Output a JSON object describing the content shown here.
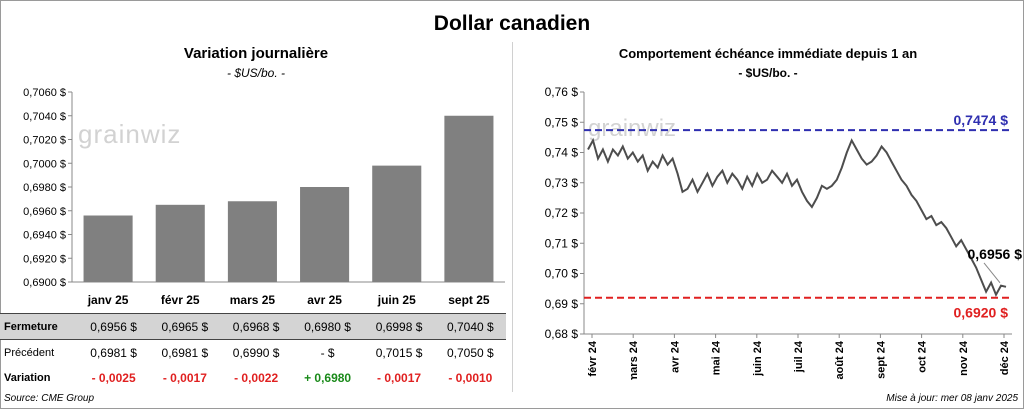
{
  "title": "Dollar canadien",
  "left": {
    "title": "Variation journalière",
    "unit": "- $US/bo. -",
    "chart_data": {
      "type": "bar",
      "categories": [
        "janv 25",
        "févr 25",
        "mars 25",
        "avr 25",
        "juin 25",
        "sept 25"
      ],
      "values": [
        0.6956,
        0.6965,
        0.6968,
        0.698,
        0.6998,
        0.704
      ],
      "ylim": [
        0.69,
        0.706
      ],
      "yticks": [
        "0,6900 $",
        "0,6920 $",
        "0,6940 $",
        "0,6960 $",
        "0,6980 $",
        "0,7000 $",
        "0,7020 $",
        "0,7040 $",
        "0,7060 $"
      ],
      "bar_color": "#808080"
    }
  },
  "table": {
    "rows": [
      {
        "label": "Fermeture",
        "values": [
          "0,6956 $",
          "0,6965 $",
          "0,6968 $",
          "0,6980 $",
          "0,6998 $",
          "0,7040 $"
        ]
      },
      {
        "label": "Précédent",
        "values": [
          "0,6981 $",
          "0,6981 $",
          "0,6990 $",
          "- $",
          "0,7015 $",
          "0,7050 $"
        ]
      },
      {
        "label": "Variation",
        "values": [
          "- 0,0025",
          "- 0,0017",
          "- 0,0022",
          "+ 0,6980",
          "- 0,0017",
          "- 0,0010"
        ],
        "signs": [
          "neg",
          "neg",
          "neg",
          "pos",
          "neg",
          "neg"
        ]
      }
    ]
  },
  "right": {
    "title": "Comportement échéance immédiate depuis 1 an",
    "unit": "- $US/bo. -",
    "chart_data": {
      "type": "line",
      "xlabels": [
        "févr 24",
        "mars 24",
        "avr 24",
        "mai 24",
        "juin 24",
        "juil 24",
        "août 24",
        "sept 24",
        "oct 24",
        "nov 24",
        "déc 24"
      ],
      "yticks": [
        "0,68 $",
        "0,69 $",
        "0,70 $",
        "0,71 $",
        "0,72 $",
        "0,73 $",
        "0,74 $",
        "0,75 $",
        "0,76 $"
      ],
      "ylim": [
        0.68,
        0.76
      ],
      "series": [
        {
          "values": [
            0.741,
            0.744,
            0.738,
            0.741,
            0.737,
            0.741,
            0.739,
            0.742,
            0.738,
            0.74,
            0.737,
            0.739,
            0.734,
            0.737,
            0.735,
            0.739,
            0.736,
            0.738,
            0.733,
            0.727,
            0.728,
            0.731,
            0.727,
            0.73,
            0.733,
            0.729,
            0.732,
            0.734,
            0.73,
            0.733,
            0.731,
            0.728,
            0.732,
            0.729,
            0.733,
            0.73,
            0.731,
            0.734,
            0.732,
            0.73,
            0.733,
            0.729,
            0.731,
            0.727,
            0.724,
            0.722,
            0.725,
            0.729,
            0.728,
            0.729,
            0.731,
            0.735,
            0.74,
            0.744,
            0.741,
            0.738,
            0.736,
            0.737,
            0.739,
            0.742,
            0.74,
            0.737,
            0.734,
            0.731,
            0.729,
            0.726,
            0.724,
            0.721,
            0.718,
            0.719,
            0.716,
            0.717,
            0.715,
            0.712,
            0.709,
            0.711,
            0.708,
            0.705,
            0.702,
            0.698,
            0.694,
            0.697,
            0.693,
            0.696,
            0.6956
          ],
          "color": "#4d4d4d"
        }
      ],
      "annotations": [
        {
          "text": "0,7474 $",
          "value": 0.7474,
          "color": "#2f2fb0"
        },
        {
          "text": "0,6920 $",
          "value": 0.692,
          "color": "#e02020"
        },
        {
          "text": "0,6956 $",
          "value": 0.6956,
          "color": "#000000"
        }
      ]
    }
  },
  "footer": {
    "source": "Source: CME Group",
    "updated": "Mise à jour: mer 08 janv 2025"
  },
  "watermark": "grainwiz"
}
